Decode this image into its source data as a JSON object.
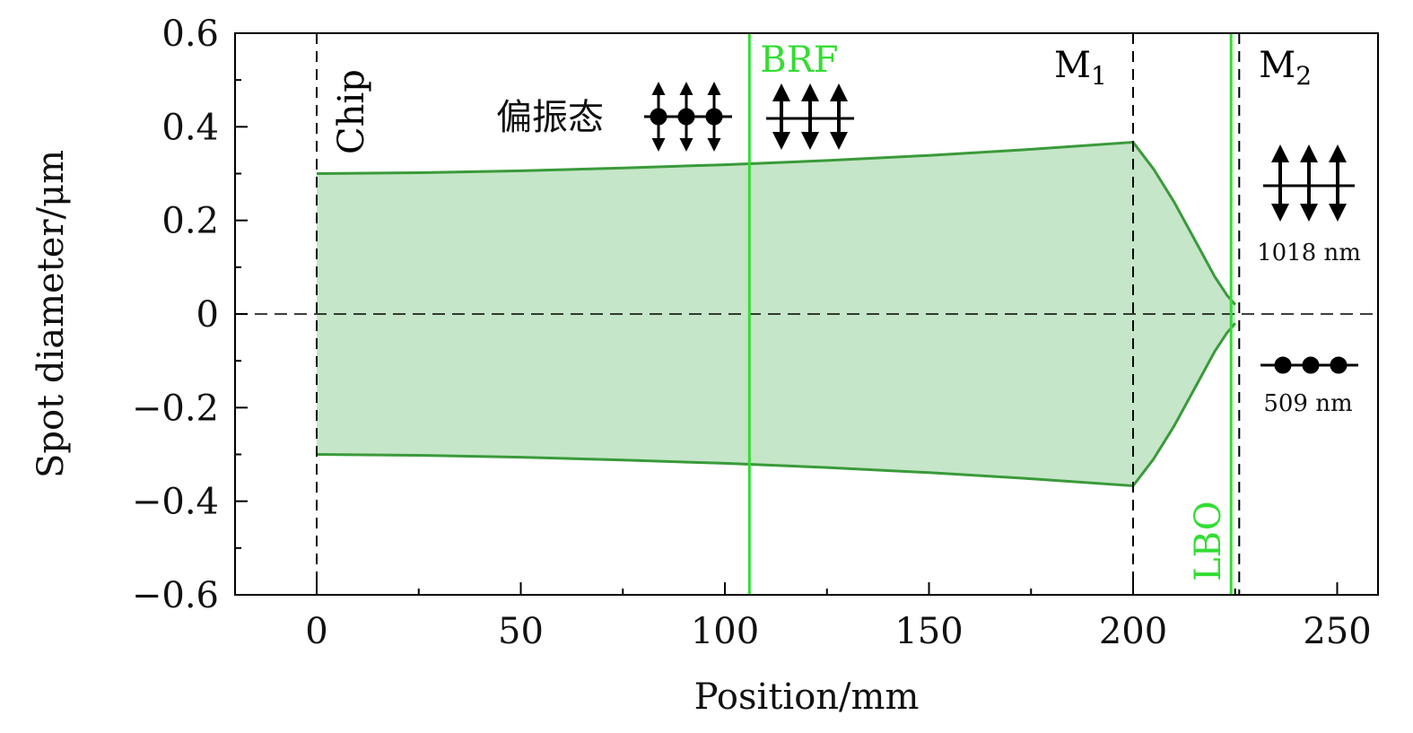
{
  "chart_data": {
    "type": "area",
    "xlabel": "Position/mm",
    "ylabel": "Spot diameter/μm",
    "xlim": [
      -20,
      260
    ],
    "ylim": [
      -0.6,
      0.6
    ],
    "xticks": [
      0,
      50,
      100,
      150,
      200,
      250
    ],
    "yticks": [
      -0.6,
      -0.4,
      -0.2,
      0,
      0.2,
      0.4,
      0.6
    ],
    "ytick_labels": [
      "−0.6",
      "−0.4",
      "−0.2",
      "0",
      "0.2",
      "0.4",
      "0.6"
    ],
    "grid": false,
    "series": [
      {
        "x": [
          0,
          25,
          50,
          75,
          100,
          106,
          125,
          150,
          175,
          200,
          205,
          210,
          215,
          220,
          223,
          225
        ],
        "upper": [
          0.3,
          0.302,
          0.306,
          0.312,
          0.319,
          0.321,
          0.328,
          0.339,
          0.352,
          0.367,
          0.31,
          0.24,
          0.16,
          0.08,
          0.04,
          0.02
        ],
        "lower": [
          -0.3,
          -0.302,
          -0.306,
          -0.312,
          -0.319,
          -0.321,
          -0.328,
          -0.339,
          -0.352,
          -0.367,
          -0.31,
          -0.24,
          -0.16,
          -0.08,
          -0.04,
          -0.02
        ]
      }
    ],
    "color": "#3a9a3a",
    "fill_color": "#c5e6c8",
    "elements": [
      {
        "label": "Chip",
        "x": 0,
        "line_style": "dashed",
        "color": "#000000"
      },
      {
        "label": "BRF",
        "x": 106,
        "line_style": "solid",
        "color": "#33dd33"
      },
      {
        "label": "M",
        "subscript": "1",
        "x": 200,
        "line_style": "dashed",
        "color": "#000000"
      },
      {
        "label": "LBO",
        "x": 224,
        "line_style": "solid",
        "color": "#33dd33"
      },
      {
        "label": "M",
        "subscript": "2",
        "x": 226,
        "line_style": "dashed",
        "color": "#000000"
      }
    ],
    "annotations": {
      "polarization_label": "偏振态",
      "wavelength_fundamental": "1018 nm",
      "wavelength_second_harmonic": "509 nm"
    }
  }
}
